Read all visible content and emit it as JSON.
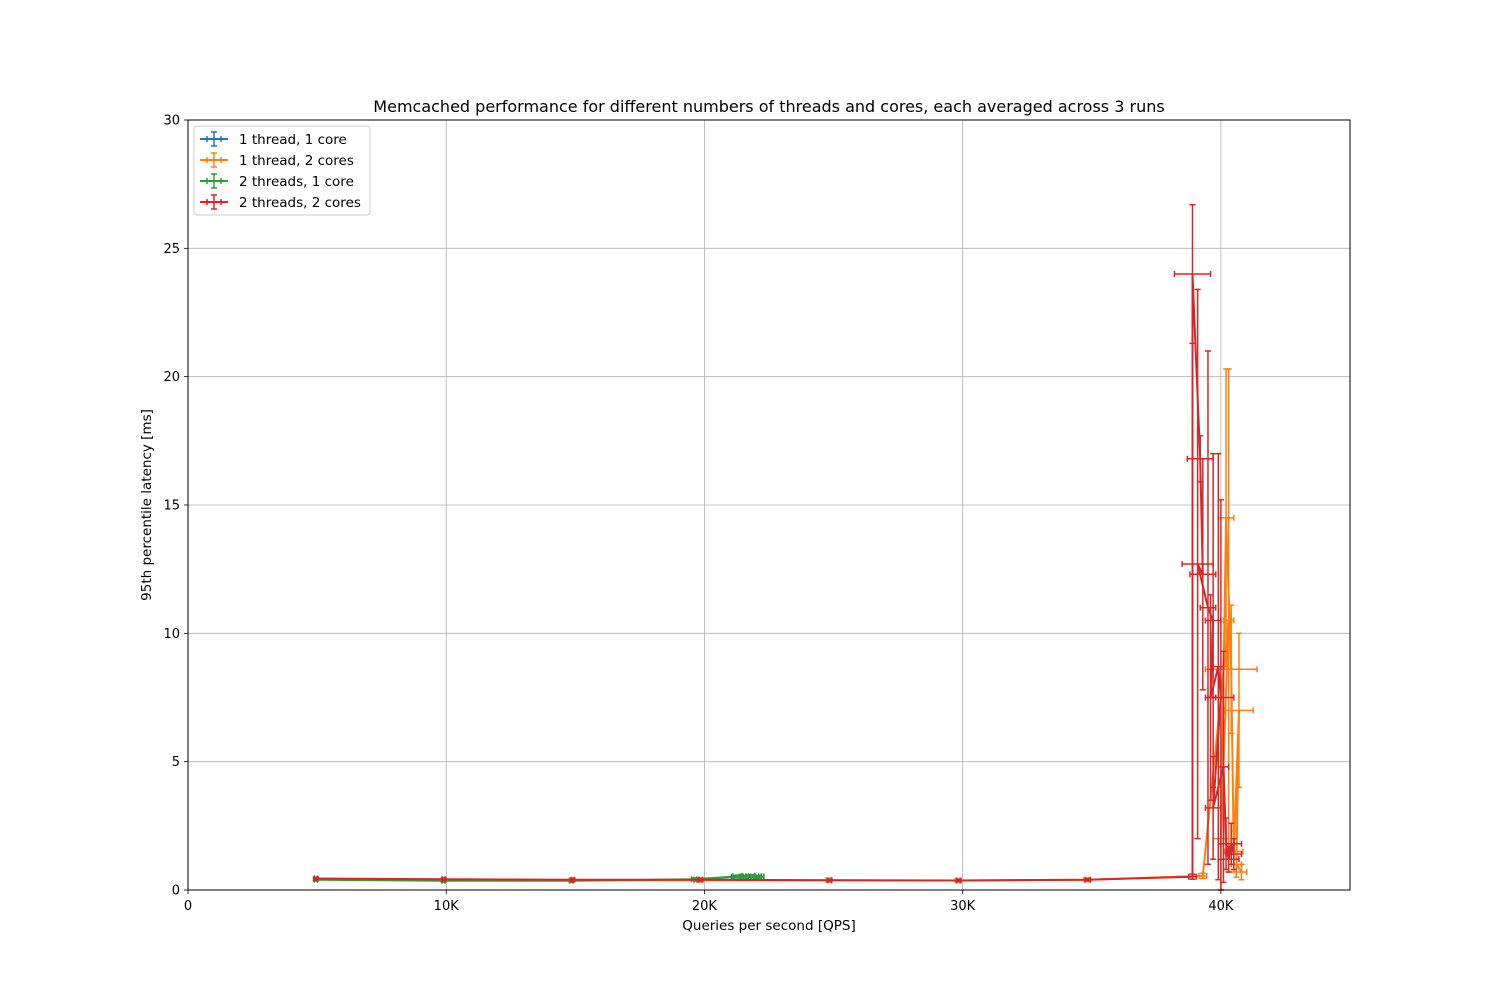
{
  "chart_data": {
    "type": "line",
    "title": "Memcached performance for different numbers of threads and cores, each averaged across 3 runs",
    "xlabel": "Queries per second [QPS]",
    "ylabel": "95th percentile latency [ms]",
    "xlim": [
      0,
      45000
    ],
    "ylim": [
      0,
      30
    ],
    "x_ticks": [
      0,
      10000,
      20000,
      30000,
      40000
    ],
    "x_tick_labels": [
      "0",
      "10K",
      "20K",
      "30K",
      "40K"
    ],
    "y_ticks": [
      0,
      5,
      10,
      15,
      20,
      25,
      30
    ],
    "y_tick_labels": [
      "0",
      "5",
      "10",
      "15",
      "20",
      "25",
      "30"
    ],
    "grid": true,
    "legend_position": "top-left",
    "error_bars": true,
    "series": [
      {
        "name": "1 thread, 1 core",
        "color": "#1f77b4",
        "points": [
          {
            "x": 4950,
            "y": 0.42,
            "xerr": 60,
            "yerr": 0.05
          },
          {
            "x": 9900,
            "y": 0.38,
            "xerr": 60,
            "yerr": 0.05
          },
          {
            "x": 14850,
            "y": 0.37,
            "xerr": 60,
            "yerr": 0.05
          },
          {
            "x": 19700,
            "y": 0.4,
            "xerr": 100,
            "yerr": 0.05
          },
          {
            "x": 21200,
            "y": 0.52,
            "xerr": 150,
            "yerr": 0.05
          },
          {
            "x": 21600,
            "y": 0.52,
            "xerr": 200,
            "yerr": 0.05
          },
          {
            "x": 21900,
            "y": 0.53,
            "xerr": 200,
            "yerr": 0.05
          },
          {
            "x": 22100,
            "y": 0.52,
            "xerr": 200,
            "yerr": 0.05
          }
        ]
      },
      {
        "name": "1 thread, 2 cores",
        "color": "#ff7f0e",
        "points": [
          {
            "x": 4950,
            "y": 0.42,
            "xerr": 60,
            "yerr": 0.05
          },
          {
            "x": 9900,
            "y": 0.4,
            "xerr": 60,
            "yerr": 0.05
          },
          {
            "x": 14850,
            "y": 0.38,
            "xerr": 60,
            "yerr": 0.05
          },
          {
            "x": 19800,
            "y": 0.38,
            "xerr": 80,
            "yerr": 0.05
          },
          {
            "x": 24800,
            "y": 0.38,
            "xerr": 80,
            "yerr": 0.05
          },
          {
            "x": 29800,
            "y": 0.37,
            "xerr": 80,
            "yerr": 0.05
          },
          {
            "x": 34800,
            "y": 0.4,
            "xerr": 100,
            "yerr": 0.05
          },
          {
            "x": 39300,
            "y": 0.55,
            "xerr": 150,
            "yerr": 0.1
          },
          {
            "x": 40300,
            "y": 10.5,
            "xerr": 200,
            "yerr": 9.8
          },
          {
            "x": 40000,
            "y": 2.0,
            "xerr": 300,
            "yerr": 2.0
          },
          {
            "x": 40200,
            "y": 14.5,
            "xerr": 300,
            "yerr": 5.8
          },
          {
            "x": 40400,
            "y": 8.6,
            "xerr": 1000,
            "yerr": 2.5
          },
          {
            "x": 40500,
            "y": 1.5,
            "xerr": 350,
            "yerr": 0.8
          },
          {
            "x": 40700,
            "y": 7.0,
            "xerr": 550,
            "yerr": 3.0
          },
          {
            "x": 40600,
            "y": 1.0,
            "xerr": 200,
            "yerr": 0.5
          },
          {
            "x": 40800,
            "y": 0.7,
            "xerr": 200,
            "yerr": 0.3
          }
        ]
      },
      {
        "name": "2 threads, 1 core",
        "color": "#2ca02c",
        "points": [
          {
            "x": 4950,
            "y": 0.4,
            "xerr": 60,
            "yerr": 0.05
          },
          {
            "x": 9900,
            "y": 0.36,
            "xerr": 60,
            "yerr": 0.05
          },
          {
            "x": 14850,
            "y": 0.36,
            "xerr": 60,
            "yerr": 0.05
          },
          {
            "x": 19600,
            "y": 0.42,
            "xerr": 100,
            "yerr": 0.05
          },
          {
            "x": 21300,
            "y": 0.53,
            "xerr": 200,
            "yerr": 0.05
          },
          {
            "x": 21700,
            "y": 0.55,
            "xerr": 250,
            "yerr": 0.05
          },
          {
            "x": 21900,
            "y": 0.53,
            "xerr": 300,
            "yerr": 0.05
          },
          {
            "x": 22000,
            "y": 0.5,
            "xerr": 300,
            "yerr": 0.05
          }
        ]
      },
      {
        "name": "2 threads, 2 cores",
        "color": "#d62728",
        "points": [
          {
            "x": 4950,
            "y": 0.45,
            "xerr": 60,
            "yerr": 0.05
          },
          {
            "x": 9900,
            "y": 0.42,
            "xerr": 60,
            "yerr": 0.05
          },
          {
            "x": 14900,
            "y": 0.4,
            "xerr": 60,
            "yerr": 0.05
          },
          {
            "x": 19850,
            "y": 0.4,
            "xerr": 80,
            "yerr": 0.05
          },
          {
            "x": 24850,
            "y": 0.38,
            "xerr": 80,
            "yerr": 0.05
          },
          {
            "x": 29850,
            "y": 0.37,
            "xerr": 80,
            "yerr": 0.05
          },
          {
            "x": 34850,
            "y": 0.4,
            "xerr": 100,
            "yerr": 0.05
          },
          {
            "x": 38900,
            "y": 0.52,
            "xerr": 150,
            "yerr": 0.1
          },
          {
            "x": 38900,
            "y": 24.0,
            "xerr": 700,
            "yerr": 2.7
          },
          {
            "x": 39200,
            "y": 16.8,
            "xerr": 500,
            "yerr": 0.9
          },
          {
            "x": 39300,
            "y": 12.3,
            "xerr": 500,
            "yerr": 4.5
          },
          {
            "x": 39100,
            "y": 12.7,
            "xerr": 600,
            "yerr": 10.7
          },
          {
            "x": 39500,
            "y": 11.0,
            "xerr": 300,
            "yerr": 10.0
          },
          {
            "x": 39700,
            "y": 10.5,
            "xerr": 300,
            "yerr": 6.5
          },
          {
            "x": 39600,
            "y": 7.5,
            "xerr": 200,
            "yerr": 4.0
          },
          {
            "x": 39900,
            "y": 8.7,
            "xerr": 200,
            "yerr": 8.3
          },
          {
            "x": 40000,
            "y": 7.5,
            "xerr": 500,
            "yerr": 7.7
          },
          {
            "x": 39700,
            "y": 3.2,
            "xerr": 300,
            "yerr": 2.0
          },
          {
            "x": 40100,
            "y": 4.8,
            "xerr": 200,
            "yerr": 4.5
          },
          {
            "x": 40200,
            "y": 1.8,
            "xerr": 300,
            "yerr": 1.0
          },
          {
            "x": 40300,
            "y": 1.2,
            "xerr": 400,
            "yerr": 0.5
          },
          {
            "x": 40400,
            "y": 1.8,
            "xerr": 400,
            "yerr": 0.8
          },
          {
            "x": 40500,
            "y": 1.4,
            "xerr": 300,
            "yerr": 0.6
          }
        ]
      }
    ]
  }
}
